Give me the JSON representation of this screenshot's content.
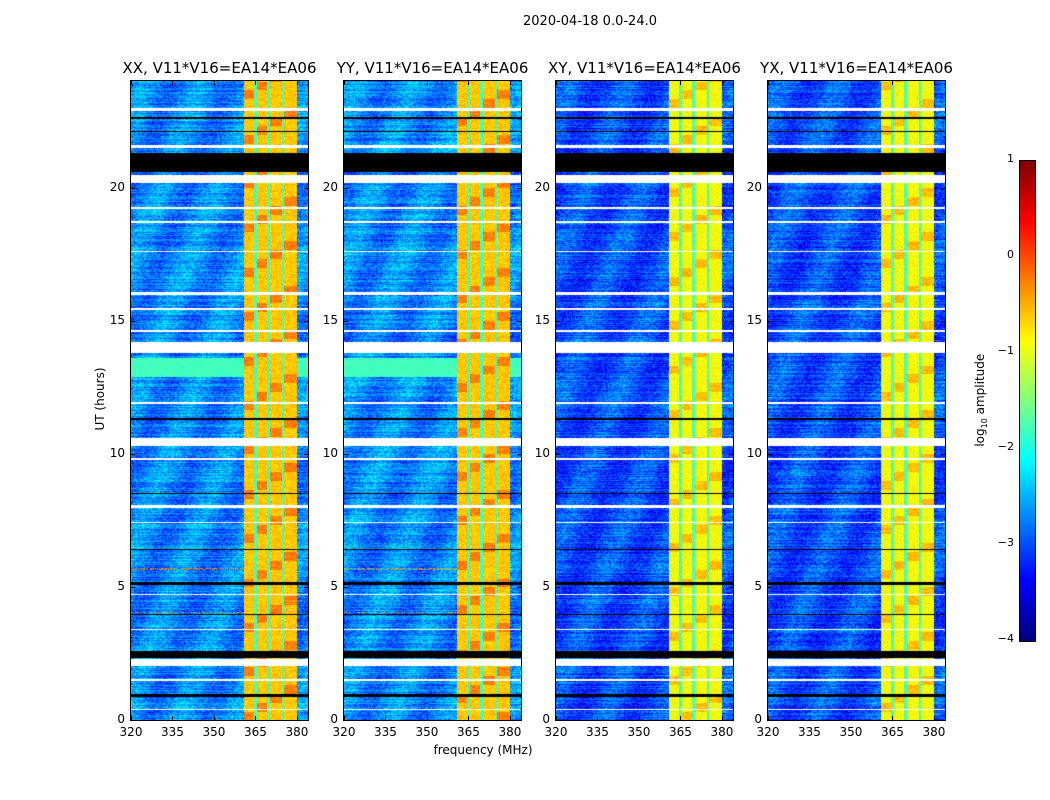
{
  "chart_data": {
    "type": "heatmap",
    "title": "2020-04-18 0.0-24.0",
    "xlabel": "frequency (MHz)",
    "ylabel": "UT (hours)",
    "xlim": [
      320,
      384
    ],
    "ylim": [
      0,
      24
    ],
    "xticks": [
      "320",
      "335",
      "350",
      "365",
      "380"
    ],
    "yticks": [
      "0",
      "5",
      "10",
      "15",
      "20"
    ],
    "colorbar": {
      "label_main": "log",
      "label_sub": "10",
      "label_rest": " amplitude",
      "range": [
        -4,
        1
      ],
      "ticks": [
        "1",
        "0",
        "−1",
        "−2",
        "−3",
        "−4"
      ],
      "colormap": "jet"
    },
    "panels": [
      {
        "title": "XX, V11*V16=EA14*EA06",
        "pol": "XX",
        "background": -2.7,
        "band_level": -0.6,
        "cyan_rows": [
          12.9,
          13.6
        ]
      },
      {
        "title": "YY, V11*V16=EA14*EA06",
        "pol": "YY",
        "background": -2.7,
        "band_level": -0.6,
        "cyan_rows": [
          12.9,
          13.6
        ]
      },
      {
        "title": "XY, V11*V16=EA14*EA06",
        "pol": "XY",
        "background": -3.0,
        "band_level": -0.9,
        "cyan_rows": null
      },
      {
        "title": "YX, V11*V16=EA14*EA06",
        "pol": "YX",
        "background": -3.0,
        "band_level": -0.9,
        "cyan_rows": null
      }
    ],
    "bright_band_mhz": [
      360.5,
      380
    ],
    "band_gaps_mhz": [
      364.8,
      369.6,
      374.8
    ],
    "flagged_black_hours": [
      [
        20.6,
        21.3
      ],
      [
        2.35,
        2.6
      ],
      [
        0.9,
        1.0
      ],
      [
        22.1,
        22.15
      ],
      [
        22.6,
        22.65
      ],
      [
        5.1,
        5.2
      ],
      [
        3.95,
        4.0
      ],
      [
        6.4,
        6.45
      ],
      [
        8.5,
        8.55
      ],
      [
        11.3,
        11.35
      ]
    ],
    "flagged_white_hours": [
      [
        20.2,
        20.5
      ],
      [
        2.05,
        2.3
      ],
      [
        13.8,
        14.2
      ],
      [
        10.3,
        10.6
      ],
      [
        22.9,
        23.0
      ],
      [
        21.5,
        21.6
      ],
      [
        19.2,
        19.3
      ],
      [
        18.7,
        18.75
      ],
      [
        17.6,
        17.65
      ],
      [
        16.0,
        16.1
      ],
      [
        15.4,
        15.5
      ],
      [
        14.6,
        14.65
      ],
      [
        11.9,
        11.95
      ],
      [
        9.8,
        9.85
      ],
      [
        8.0,
        8.1
      ],
      [
        7.4,
        7.45
      ],
      [
        4.7,
        4.75
      ],
      [
        3.4,
        3.45
      ],
      [
        1.5,
        1.55
      ],
      [
        0.4,
        0.45
      ]
    ]
  }
}
